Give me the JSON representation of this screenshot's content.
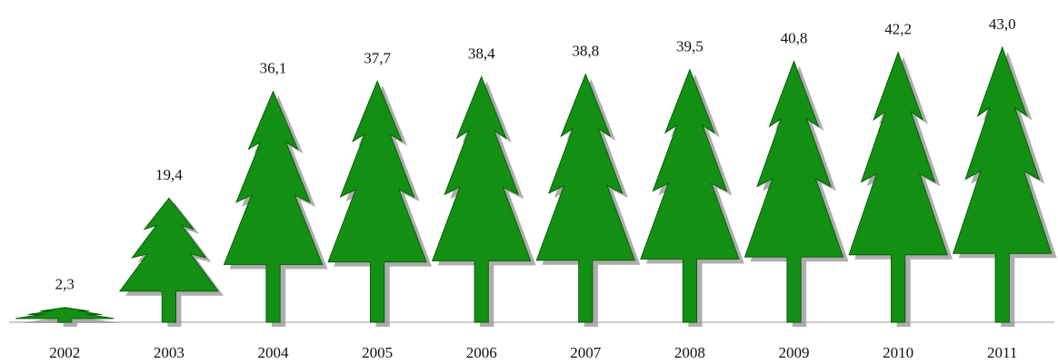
{
  "chart_data": {
    "type": "bar",
    "categories": [
      "2002",
      "2003",
      "2004",
      "2005",
      "2006",
      "2007",
      "2008",
      "2009",
      "2010",
      "2011"
    ],
    "values": [
      2.3,
      19.4,
      36.1,
      37.7,
      38.4,
      38.8,
      39.5,
      40.8,
      42.2,
      43.0
    ],
    "value_labels": [
      "2,3",
      "19,4",
      "36,1",
      "37,7",
      "38,4",
      "38,8",
      "39,5",
      "40,8",
      "42,2",
      "43,0"
    ],
    "color": "#139013",
    "ylim": [
      0,
      45
    ]
  }
}
